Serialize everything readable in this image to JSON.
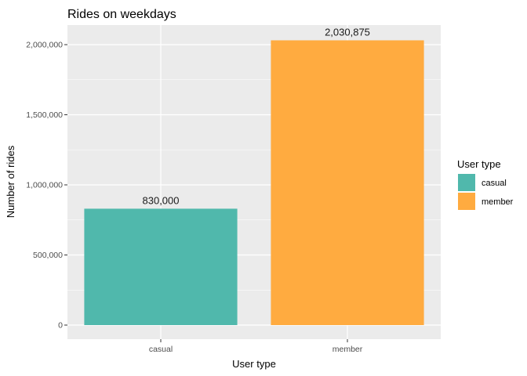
{
  "chart_data": {
    "type": "bar",
    "title": "Rides on weekdays",
    "xlabel": "User type",
    "ylabel": "Number of rides",
    "categories": [
      "casual",
      "member"
    ],
    "values": [
      830000,
      2030875
    ],
    "value_labels": [
      "830,000",
      "2,030,875"
    ],
    "colors": [
      "#50b8ac",
      "#ffab40"
    ],
    "ylim": [
      0,
      2150000
    ],
    "yticks": [
      0,
      500000,
      1000000,
      1500000,
      2000000
    ],
    "ytick_labels": [
      "0",
      "500,000",
      "1,000,000",
      "1,500,000",
      "2,000,000"
    ],
    "grid": true,
    "legend": {
      "title": "User type",
      "placement": "right",
      "entries": [
        "casual",
        "member"
      ]
    },
    "panel_background": "#ebebeb"
  }
}
